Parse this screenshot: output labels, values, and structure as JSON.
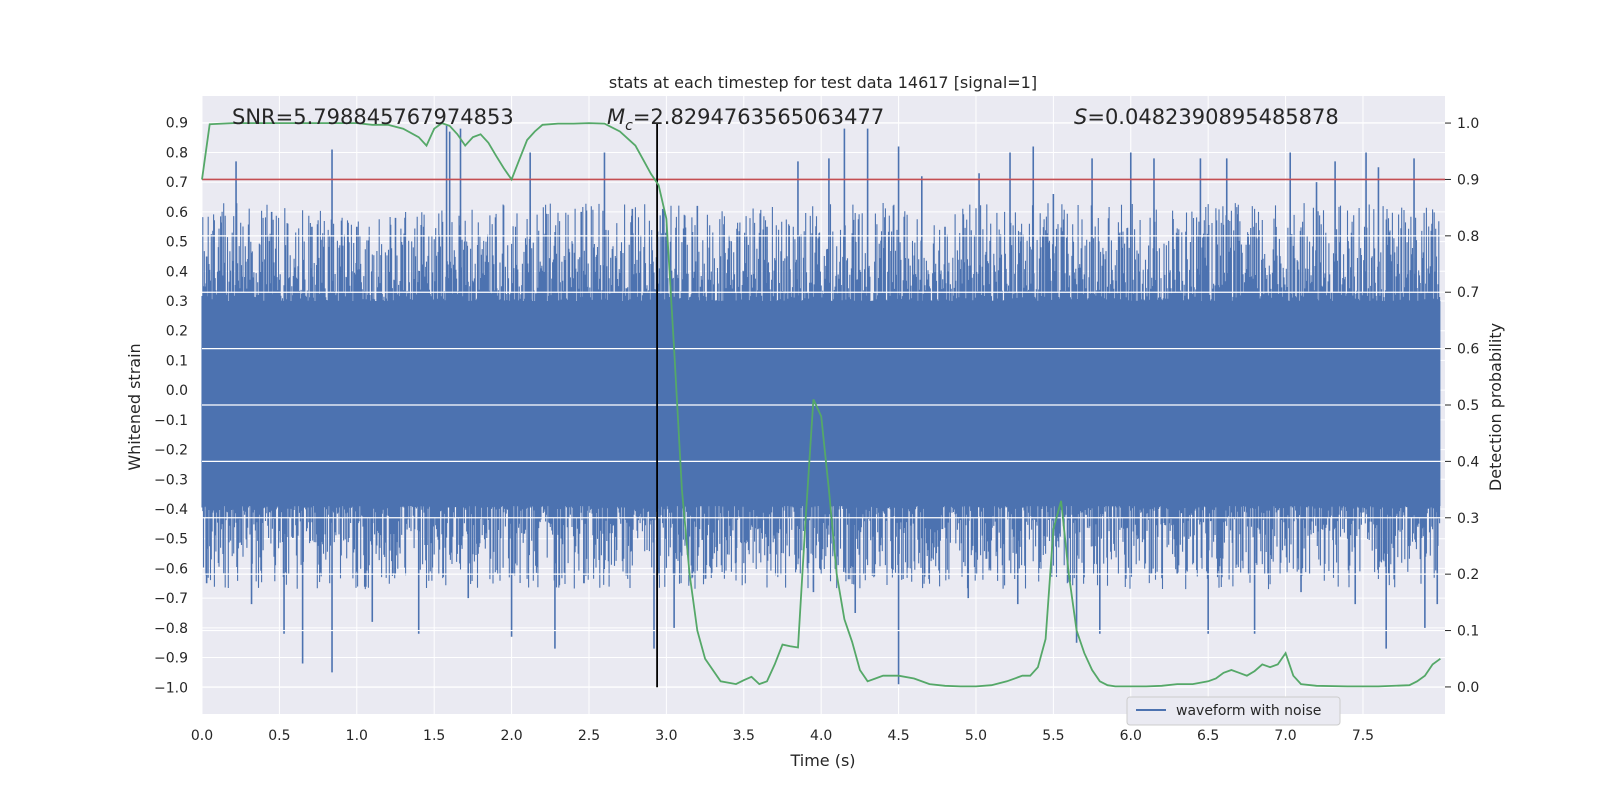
{
  "chart_data": {
    "type": "line",
    "title": "stats at each timestep for test data 14617 [signal=1]",
    "xlabel": "Time (s)",
    "ylabel_left": "Whitened strain",
    "ylabel_right": "Detection probability",
    "xlim": [
      0.0,
      8.03
    ],
    "ylim_left": [
      -1.09,
      0.99
    ],
    "ylim_right": [
      -0.048,
      1.048
    ],
    "xticks": [
      "0.0",
      "0.5",
      "1.0",
      "1.5",
      "2.0",
      "2.5",
      "3.0",
      "3.5",
      "4.0",
      "4.5",
      "5.0",
      "5.5",
      "6.0",
      "6.5",
      "7.0",
      "7.5"
    ],
    "yticks_left": [
      "0.9",
      "0.8",
      "0.7",
      "0.6",
      "0.5",
      "0.4",
      "0.3",
      "0.2",
      "0.1",
      "0.0",
      "−0.1",
      "−0.2",
      "−0.3",
      "−0.4",
      "−0.5",
      "−0.6",
      "−0.7",
      "−0.8",
      "−0.9",
      "−1.0"
    ],
    "yticks_right": [
      "1.0",
      "0.9",
      "0.8",
      "0.7",
      "0.6",
      "0.5",
      "0.4",
      "0.3",
      "0.2",
      "0.1",
      "0.0"
    ],
    "grid": true,
    "annotations": {
      "snr": "SNR=5.798845767974853",
      "mc_symbol": "M",
      "mc_sub": "c",
      "mc_value": "=2.8294763565063477",
      "s_symbol": "S",
      "s_value": "=0.0482390895485878"
    },
    "threshold": {
      "value": 0.9,
      "axis": "right",
      "color": "#c44e52"
    },
    "vertical_marker": {
      "x": 2.94,
      "color": "#000000"
    },
    "series": [
      {
        "name": "waveform with noise",
        "axis": "left",
        "color": "#4c72b0",
        "kind": "noise-waveform",
        "core_min": -0.39,
        "core_max": 0.3,
        "spikes": [
          {
            "x": 0.03,
            "y": 0.45
          },
          {
            "x": 0.03,
            "y": -0.65
          },
          {
            "x": 0.22,
            "y": 0.77
          },
          {
            "x": 0.32,
            "y": -0.72
          },
          {
            "x": 0.45,
            "y": 0.6
          },
          {
            "x": 0.53,
            "y": -0.82
          },
          {
            "x": 0.65,
            "y": -0.92
          },
          {
            "x": 0.71,
            "y": 0.55
          },
          {
            "x": 0.84,
            "y": 0.81
          },
          {
            "x": 0.84,
            "y": -0.95
          },
          {
            "x": 1.0,
            "y": 0.55
          },
          {
            "x": 1.1,
            "y": -0.78
          },
          {
            "x": 1.25,
            "y": 0.58
          },
          {
            "x": 1.4,
            "y": -0.82
          },
          {
            "x": 1.58,
            "y": 0.89
          },
          {
            "x": 1.6,
            "y": 0.87
          },
          {
            "x": 1.67,
            "y": 0.88
          },
          {
            "x": 1.72,
            "y": -0.7
          },
          {
            "x": 1.9,
            "y": 0.52
          },
          {
            "x": 2.0,
            "y": -0.83
          },
          {
            "x": 2.12,
            "y": 0.8
          },
          {
            "x": 2.28,
            "y": -0.87
          },
          {
            "x": 2.45,
            "y": 0.6
          },
          {
            "x": 2.6,
            "y": 0.8
          },
          {
            "x": 2.78,
            "y": 0.61
          },
          {
            "x": 2.92,
            "y": -0.87
          },
          {
            "x": 3.05,
            "y": -0.8
          },
          {
            "x": 3.2,
            "y": 0.62
          },
          {
            "x": 3.45,
            "y": -0.58
          },
          {
            "x": 3.65,
            "y": 0.55
          },
          {
            "x": 3.85,
            "y": 0.77
          },
          {
            "x": 3.95,
            "y": -0.68
          },
          {
            "x": 4.05,
            "y": 0.78
          },
          {
            "x": 4.15,
            "y": 0.88
          },
          {
            "x": 4.22,
            "y": -0.75
          },
          {
            "x": 4.3,
            "y": 0.88
          },
          {
            "x": 4.5,
            "y": 0.82
          },
          {
            "x": 4.5,
            "y": -0.99
          },
          {
            "x": 4.65,
            "y": 0.72
          },
          {
            "x": 4.8,
            "y": 0.55
          },
          {
            "x": 4.95,
            "y": -0.7
          },
          {
            "x": 5.02,
            "y": 0.73
          },
          {
            "x": 5.22,
            "y": 0.8
          },
          {
            "x": 5.27,
            "y": -0.72
          },
          {
            "x": 5.37,
            "y": 0.82
          },
          {
            "x": 5.5,
            "y": 0.66
          },
          {
            "x": 5.65,
            "y": -0.85
          },
          {
            "x": 5.75,
            "y": 0.78
          },
          {
            "x": 5.8,
            "y": -0.82
          },
          {
            "x": 6.0,
            "y": 0.8
          },
          {
            "x": 6.15,
            "y": 0.78
          },
          {
            "x": 6.3,
            "y": -0.62
          },
          {
            "x": 6.45,
            "y": 0.78
          },
          {
            "x": 6.5,
            "y": -0.82
          },
          {
            "x": 6.62,
            "y": 0.78
          },
          {
            "x": 6.8,
            "y": -0.82
          },
          {
            "x": 7.03,
            "y": 0.8
          },
          {
            "x": 7.1,
            "y": -0.68
          },
          {
            "x": 7.2,
            "y": 0.7
          },
          {
            "x": 7.32,
            "y": 0.77
          },
          {
            "x": 7.45,
            "y": -0.72
          },
          {
            "x": 7.52,
            "y": 0.8
          },
          {
            "x": 7.6,
            "y": 0.75
          },
          {
            "x": 7.65,
            "y": -0.87
          },
          {
            "x": 7.83,
            "y": 0.78
          },
          {
            "x": 7.9,
            "y": -0.8
          },
          {
            "x": 7.98,
            "y": -0.72
          }
        ]
      },
      {
        "name": "detection probability",
        "axis": "right",
        "color": "#55a868",
        "x": [
          0.0,
          0.05,
          0.2,
          0.4,
          0.6,
          0.8,
          1.0,
          1.1,
          1.2,
          1.3,
          1.4,
          1.45,
          1.5,
          1.55,
          1.6,
          1.65,
          1.7,
          1.75,
          1.8,
          1.85,
          1.9,
          1.95,
          2.0,
          2.05,
          2.1,
          2.15,
          2.2,
          2.3,
          2.4,
          2.5,
          2.6,
          2.7,
          2.8,
          2.85,
          2.9,
          2.95,
          3.0,
          3.05,
          3.1,
          3.15,
          3.2,
          3.25,
          3.35,
          3.45,
          3.5,
          3.55,
          3.6,
          3.65,
          3.7,
          3.75,
          3.8,
          3.85,
          3.9,
          3.95,
          4.0,
          4.05,
          4.1,
          4.15,
          4.2,
          4.25,
          4.3,
          4.35,
          4.4,
          4.45,
          4.5,
          4.6,
          4.7,
          4.8,
          4.9,
          5.0,
          5.1,
          5.2,
          5.3,
          5.35,
          5.4,
          5.45,
          5.5,
          5.55,
          5.6,
          5.65,
          5.7,
          5.75,
          5.8,
          5.85,
          5.9,
          6.0,
          6.1,
          6.2,
          6.3,
          6.4,
          6.5,
          6.55,
          6.6,
          6.65,
          6.7,
          6.75,
          6.8,
          6.85,
          6.9,
          6.95,
          7.0,
          7.05,
          7.1,
          7.2,
          7.4,
          7.6,
          7.8,
          7.85,
          7.9,
          7.95,
          8.0
        ],
        "y": [
          0.9,
          0.998,
          1.0,
          1.0,
          1.0,
          1.0,
          1.0,
          0.997,
          0.997,
          0.99,
          0.975,
          0.96,
          0.99,
          1.0,
          0.995,
          0.98,
          0.96,
          0.975,
          0.98,
          0.965,
          0.942,
          0.92,
          0.9,
          0.935,
          0.97,
          0.985,
          0.997,
          0.999,
          0.999,
          1.0,
          0.999,
          0.985,
          0.96,
          0.935,
          0.91,
          0.89,
          0.83,
          0.6,
          0.35,
          0.2,
          0.1,
          0.05,
          0.01,
          0.005,
          0.012,
          0.018,
          0.005,
          0.01,
          0.04,
          0.075,
          0.072,
          0.07,
          0.3,
          0.51,
          0.48,
          0.35,
          0.2,
          0.12,
          0.08,
          0.03,
          0.01,
          0.015,
          0.02,
          0.02,
          0.02,
          0.015,
          0.005,
          0.002,
          0.001,
          0.001,
          0.003,
          0.01,
          0.02,
          0.02,
          0.035,
          0.085,
          0.28,
          0.33,
          0.2,
          0.1,
          0.06,
          0.03,
          0.01,
          0.003,
          0.001,
          0.001,
          0.001,
          0.002,
          0.005,
          0.005,
          0.01,
          0.015,
          0.025,
          0.03,
          0.025,
          0.02,
          0.028,
          0.04,
          0.035,
          0.04,
          0.06,
          0.02,
          0.005,
          0.002,
          0.001,
          0.001,
          0.003,
          0.01,
          0.02,
          0.04,
          0.05
        ]
      }
    ],
    "legend": {
      "placement": "lower-right",
      "label": "waveform with noise"
    }
  }
}
